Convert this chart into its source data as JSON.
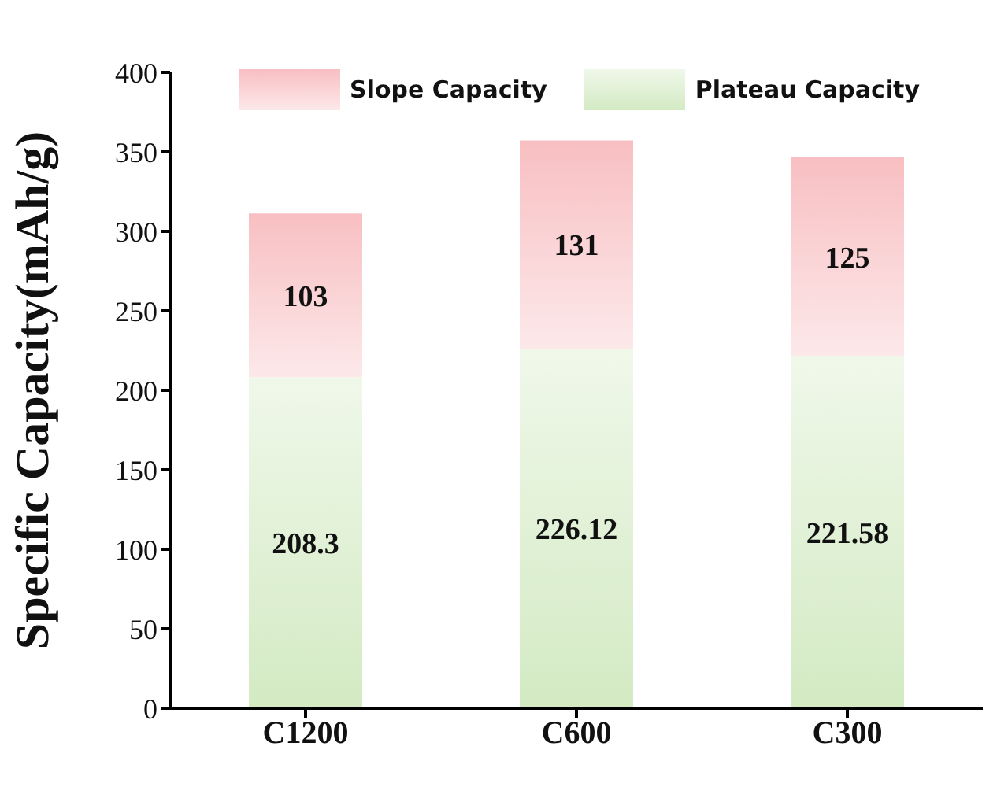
{
  "chart_data": {
    "type": "bar",
    "stacked": true,
    "ylabel": "Specific Capacity(mAh/g)",
    "categories": [
      "C1200",
      "C600",
      "C300"
    ],
    "series": [
      {
        "name": "Plateau Capacity",
        "color": "#d3eac3",
        "values": [
          208.3,
          226.12,
          221.58
        ]
      },
      {
        "name": "Slope Capacity",
        "color": "#f8bfc2",
        "values": [
          103,
          131,
          125
        ]
      }
    ],
    "ylim": [
      0,
      400
    ],
    "yticks": [
      0,
      50,
      100,
      150,
      200,
      250,
      300,
      350,
      400
    ],
    "grid": false,
    "legend": "top",
    "data_labels": true
  }
}
